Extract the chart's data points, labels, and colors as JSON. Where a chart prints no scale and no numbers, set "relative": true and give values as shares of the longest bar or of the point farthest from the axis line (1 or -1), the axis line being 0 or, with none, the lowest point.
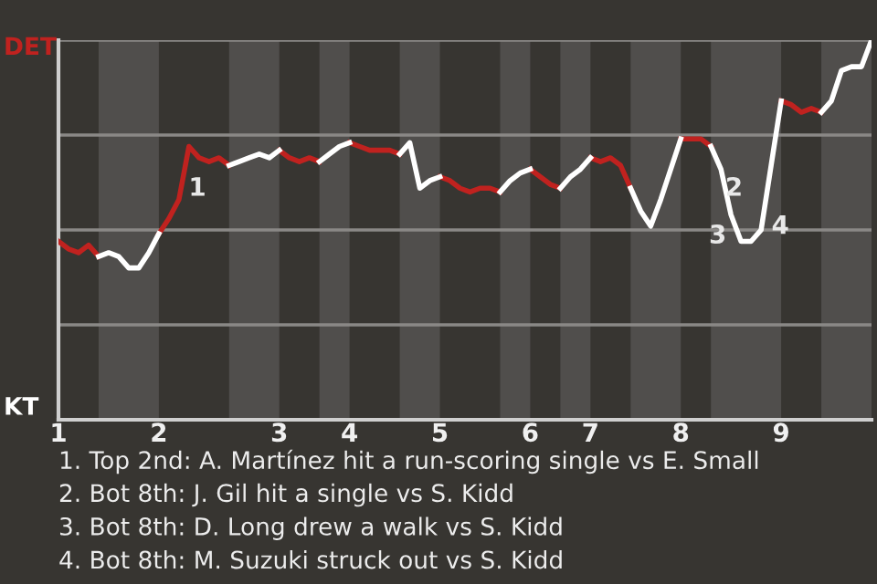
{
  "chart_data": {
    "type": "line",
    "relative": true,
    "categories": [
      "1",
      null,
      null,
      null,
      null,
      null,
      null,
      null,
      null,
      null,
      "2",
      null,
      null,
      null,
      null,
      null,
      null,
      null,
      null,
      null,
      null,
      null,
      "3",
      null,
      null,
      null,
      null,
      null,
      null,
      "4",
      null,
      null,
      null,
      null,
      null,
      null,
      null,
      null,
      "5",
      null,
      null,
      null,
      null,
      null,
      null,
      null,
      null,
      "6",
      null,
      null,
      null,
      null,
      null,
      "7",
      null,
      null,
      null,
      null,
      null,
      null,
      null,
      null,
      "8",
      null,
      null,
      null,
      null,
      null,
      null,
      null,
      null,
      null,
      "9",
      null,
      null,
      null,
      null,
      null,
      null,
      null,
      null,
      null
    ],
    "grid": "y",
    "line_style": "solid",
    "marker": "none",
    "legend": false,
    "series": [
      {
        "color": "#c0221f",
        "values": [
          0.47,
          0.45,
          0.44,
          0.46,
          0.43,
          null,
          null,
          null,
          null,
          null,
          0.49,
          0.53,
          0.58,
          0.72,
          0.69,
          0.68,
          0.69,
          0.67,
          null,
          null,
          null,
          null,
          0.71,
          0.69,
          0.68,
          0.69,
          0.68,
          null,
          null,
          0.73,
          0.72,
          0.71,
          0.71,
          0.71,
          0.7,
          null,
          null,
          null,
          0.64,
          0.63,
          0.61,
          0.6,
          0.61,
          0.61,
          0.6,
          null,
          null,
          0.66,
          0.64,
          0.62,
          0.61,
          null,
          null,
          0.69,
          0.68,
          0.69,
          0.67,
          0.61,
          null,
          null,
          null,
          null,
          0.74,
          0.74,
          0.74,
          0.72,
          null,
          null,
          null,
          null,
          null,
          null,
          0.84,
          0.83,
          0.81,
          0.82,
          0.81,
          null,
          null,
          null,
          null,
          null
        ]
      },
      {
        "color": "#ffffff",
        "values": [
          null,
          null,
          null,
          null,
          0.43,
          0.44,
          0.43,
          0.4,
          0.4,
          0.44,
          0.49,
          null,
          null,
          null,
          null,
          null,
          null,
          0.67,
          0.68,
          0.69,
          0.7,
          0.69,
          0.71,
          null,
          null,
          null,
          0.68,
          0.7,
          0.72,
          0.73,
          null,
          null,
          null,
          null,
          0.7,
          0.73,
          0.61,
          0.63,
          0.64,
          null,
          null,
          null,
          null,
          null,
          0.6,
          0.63,
          0.65,
          0.66,
          null,
          null,
          0.61,
          0.64,
          0.66,
          0.69,
          null,
          null,
          null,
          0.61,
          0.55,
          0.51,
          0.58,
          0.66,
          0.74,
          null,
          null,
          0.72,
          0.66,
          0.54,
          0.47,
          0.47,
          0.5,
          0.67,
          0.84,
          null,
          null,
          null,
          0.81,
          0.84,
          0.92,
          0.93,
          0.93,
          1.0
        ]
      }
    ],
    "annotations": [
      "DET",
      "KT",
      "1",
      "2",
      "3",
      "4",
      "1. Top 2nd: A. Martínez hit a run-scoring single vs E. Small",
      "2. Bot 8th: J. Gil hit a single vs S. Kidd",
      "3. Bot 8th: D. Long drew a walk vs S. Kidd",
      "4. Bot 8th: M. Suzuki struck out vs S. Kidd"
    ]
  }
}
